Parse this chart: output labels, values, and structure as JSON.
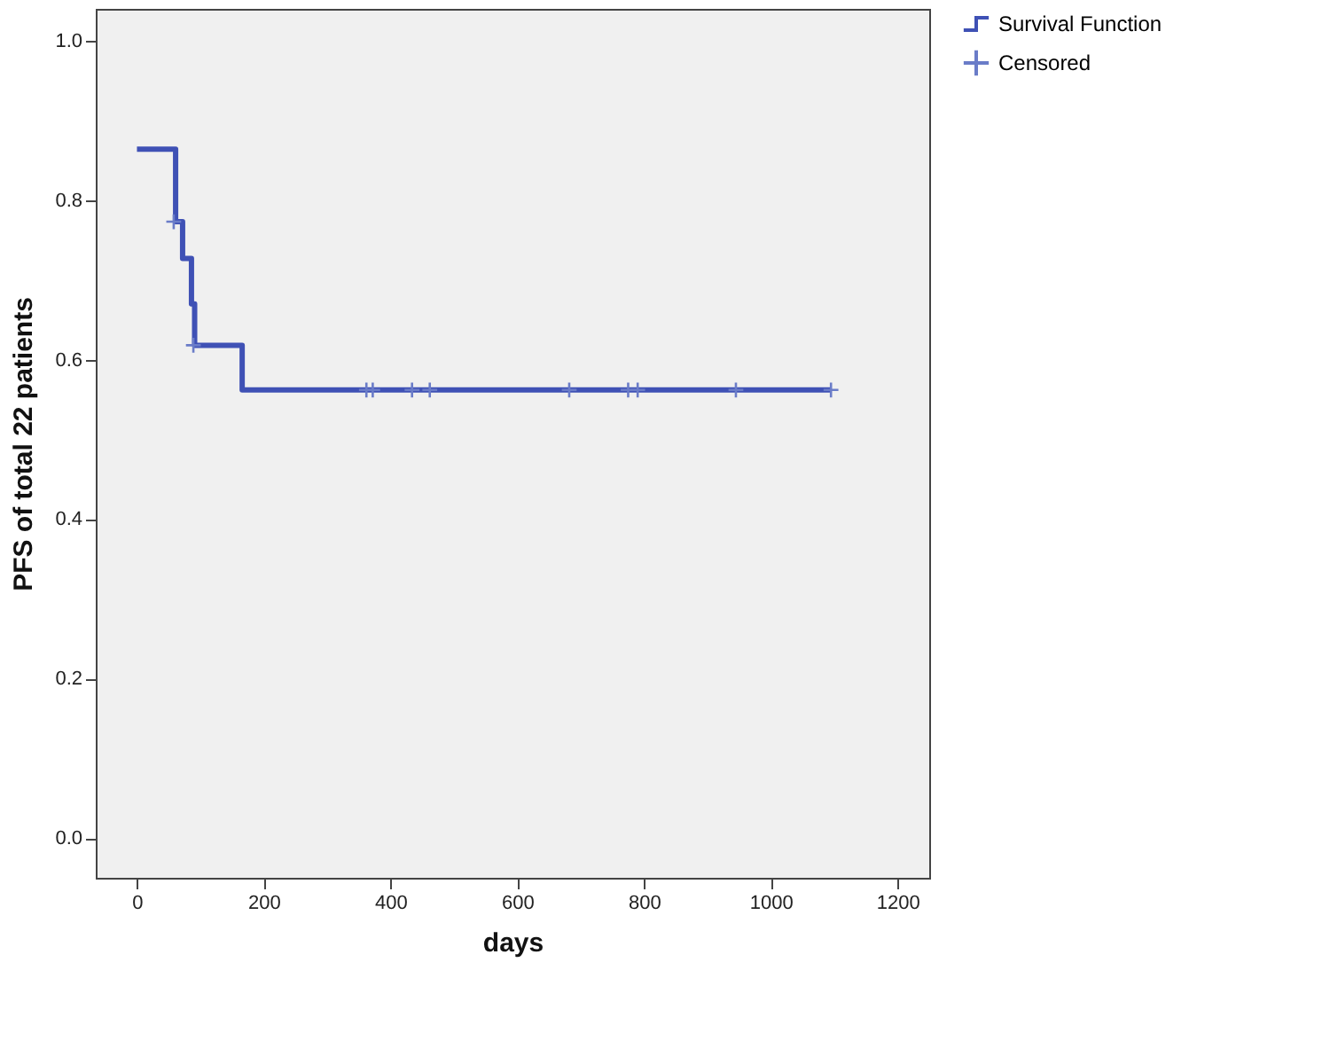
{
  "chart_data": {
    "type": "step",
    "xlabel": "days",
    "ylabel": "PFS of total 22 patients",
    "xlim": [
      -65,
      1250
    ],
    "ylim": [
      -0.05,
      1.04
    ],
    "xticks": [
      0,
      200,
      400,
      600,
      800,
      1000,
      1200
    ],
    "yticks": [
      {
        "value": 0,
        "label": "0.0"
      },
      {
        "value": 0.2,
        "label": "0.2"
      },
      {
        "value": 0.4,
        "label": "0.4"
      },
      {
        "value": 0.6,
        "label": "0.6"
      },
      {
        "value": 0.8,
        "label": "0.8"
      },
      {
        "value": 1,
        "label": "1.0"
      }
    ],
    "grid": false,
    "legend": "top right",
    "series": [
      {
        "name": "Survival Function",
        "color": "#3f51b5",
        "x": [
          0,
          61,
          72,
          86,
          91,
          166,
          1095
        ],
        "values": [
          0.864,
          0.773,
          0.727,
          0.67,
          0.618,
          0.562,
          0.562
        ]
      },
      {
        "name": "Censored",
        "type": "scatter",
        "marker": "cross",
        "color": "#6a7cc8",
        "x": [
          58,
          89,
          362,
          372,
          434,
          462,
          682,
          775,
          790,
          945,
          1095
        ],
        "values": [
          0.773,
          0.618,
          0.562,
          0.562,
          0.562,
          0.562,
          0.562,
          0.562,
          0.562,
          0.562,
          0.562
        ]
      }
    ]
  }
}
